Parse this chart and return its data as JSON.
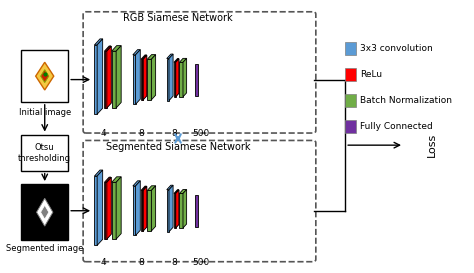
{
  "fig_width": 4.74,
  "fig_height": 2.73,
  "dpi": 100,
  "bg_color": "#ffffff",
  "blue_color": "#5b9bd5",
  "red_color": "#ff0000",
  "green_color": "#70ad47",
  "purple_color": "#7030a0",
  "pink_color": "#ffb6c1",
  "dark_gray": "#404040",
  "rgb_title": "RGB Siamese Network",
  "seg_title": "Segmented Siamese Network",
  "legend_items": [
    "3x3 convolution",
    "ReLu",
    "Batch Normalization",
    "Fully Connected"
  ],
  "legend_colors": [
    "#5b9bd5",
    "#ff0000",
    "#70ad47",
    "#7030a0"
  ],
  "labels_top": [
    "4",
    "8",
    "8",
    "500"
  ],
  "labels_bot": [
    "4",
    "8",
    "8",
    "500"
  ],
  "loss_label": "Loss",
  "initial_label": "Initial image",
  "segmented_label": "Segmented image",
  "otsu_label": "Otsu\nthresholding"
}
